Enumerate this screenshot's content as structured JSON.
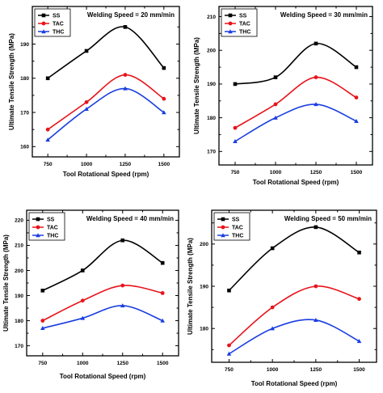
{
  "chart_data": [
    {
      "type": "line",
      "title": "Welding Speed = 20 mm/min",
      "xlabel": "Tool Rotational Speed (rpm)",
      "ylabel": "Ultimate Tensile Strength (MPa)",
      "x": [
        750,
        1000,
        1250,
        1500
      ],
      "xticks": [
        "750",
        "1000",
        "1250",
        "1500"
      ],
      "xlim": [
        650,
        1600
      ],
      "ylim": [
        157,
        201
      ],
      "yticks": [
        160,
        170,
        180,
        190
      ],
      "legend_position": "top-left",
      "series": [
        {
          "name": "SS",
          "values": [
            180,
            188,
            195,
            183
          ],
          "color": "#000000",
          "marker": "square"
        },
        {
          "name": "TAC",
          "values": [
            165,
            173,
            181,
            174
          ],
          "color": "#e8141c",
          "marker": "circle"
        },
        {
          "name": "THC",
          "values": [
            162,
            171,
            177,
            170
          ],
          "color": "#1a3ee0",
          "marker": "triangle"
        }
      ]
    },
    {
      "type": "line",
      "title": "Welding Speed = 30 mm/min",
      "xlabel": "Tool Rotational Speed (rpm)",
      "ylabel": "Ultimate Tensile Strength (MPa)",
      "x": [
        750,
        1000,
        1250,
        1500
      ],
      "xticks": [
        "750",
        "1000",
        "1250",
        "1500"
      ],
      "xlim": [
        650,
        1600
      ],
      "ylim": [
        166,
        213
      ],
      "yticks": [
        170,
        180,
        190,
        200,
        210
      ],
      "legend_position": "top-left",
      "series": [
        {
          "name": "SS",
          "values": [
            190,
            192,
            202,
            195
          ],
          "color": "#000000",
          "marker": "square"
        },
        {
          "name": "TAC",
          "values": [
            177,
            184,
            192,
            186
          ],
          "color": "#e8141c",
          "marker": "circle"
        },
        {
          "name": "THC",
          "values": [
            173,
            180,
            184,
            179
          ],
          "color": "#1a3ee0",
          "marker": "triangle"
        }
      ]
    },
    {
      "type": "line",
      "title": "Welding Speed = 40 mm/min",
      "xlabel": "Tool Rotational Speed (rpm)",
      "ylabel": "Ultimate Tensile Strength (MPa)",
      "x": [
        750,
        1000,
        1250,
        1500
      ],
      "xticks": [
        "750",
        "1000",
        "1250",
        "1500"
      ],
      "xlim": [
        650,
        1600
      ],
      "ylim": [
        166,
        224
      ],
      "yticks": [
        170,
        180,
        190,
        200,
        210,
        220
      ],
      "legend_position": "top-left",
      "series": [
        {
          "name": "SS",
          "values": [
            192,
            200,
            212,
            203
          ],
          "color": "#000000",
          "marker": "square"
        },
        {
          "name": "TAC",
          "values": [
            180,
            188,
            194,
            191
          ],
          "color": "#e8141c",
          "marker": "circle"
        },
        {
          "name": "THC",
          "values": [
            177,
            181,
            186,
            180
          ],
          "color": "#1a3ee0",
          "marker": "triangle"
        }
      ]
    },
    {
      "type": "line",
      "title": "Welding Speed = 50 mm/min",
      "xlabel": "Tool Rotational Speed (rpm)",
      "ylabel": "Ultimate Tensile Strength (MPa)",
      "x": [
        750,
        1000,
        1250,
        1500
      ],
      "xticks": [
        "750",
        "1000",
        "1250",
        "1500"
      ],
      "xlim": [
        650,
        1600
      ],
      "ylim": [
        172,
        208
      ],
      "yticks": [
        180,
        190,
        200
      ],
      "legend_position": "top-left",
      "series": [
        {
          "name": "SS",
          "values": [
            189,
            199,
            204,
            198
          ],
          "color": "#000000",
          "marker": "square"
        },
        {
          "name": "TAC",
          "values": [
            176,
            185,
            190,
            187
          ],
          "color": "#e8141c",
          "marker": "circle"
        },
        {
          "name": "THC",
          "values": [
            174,
            180,
            182,
            177
          ],
          "color": "#1a3ee0",
          "marker": "triangle"
        }
      ]
    }
  ]
}
